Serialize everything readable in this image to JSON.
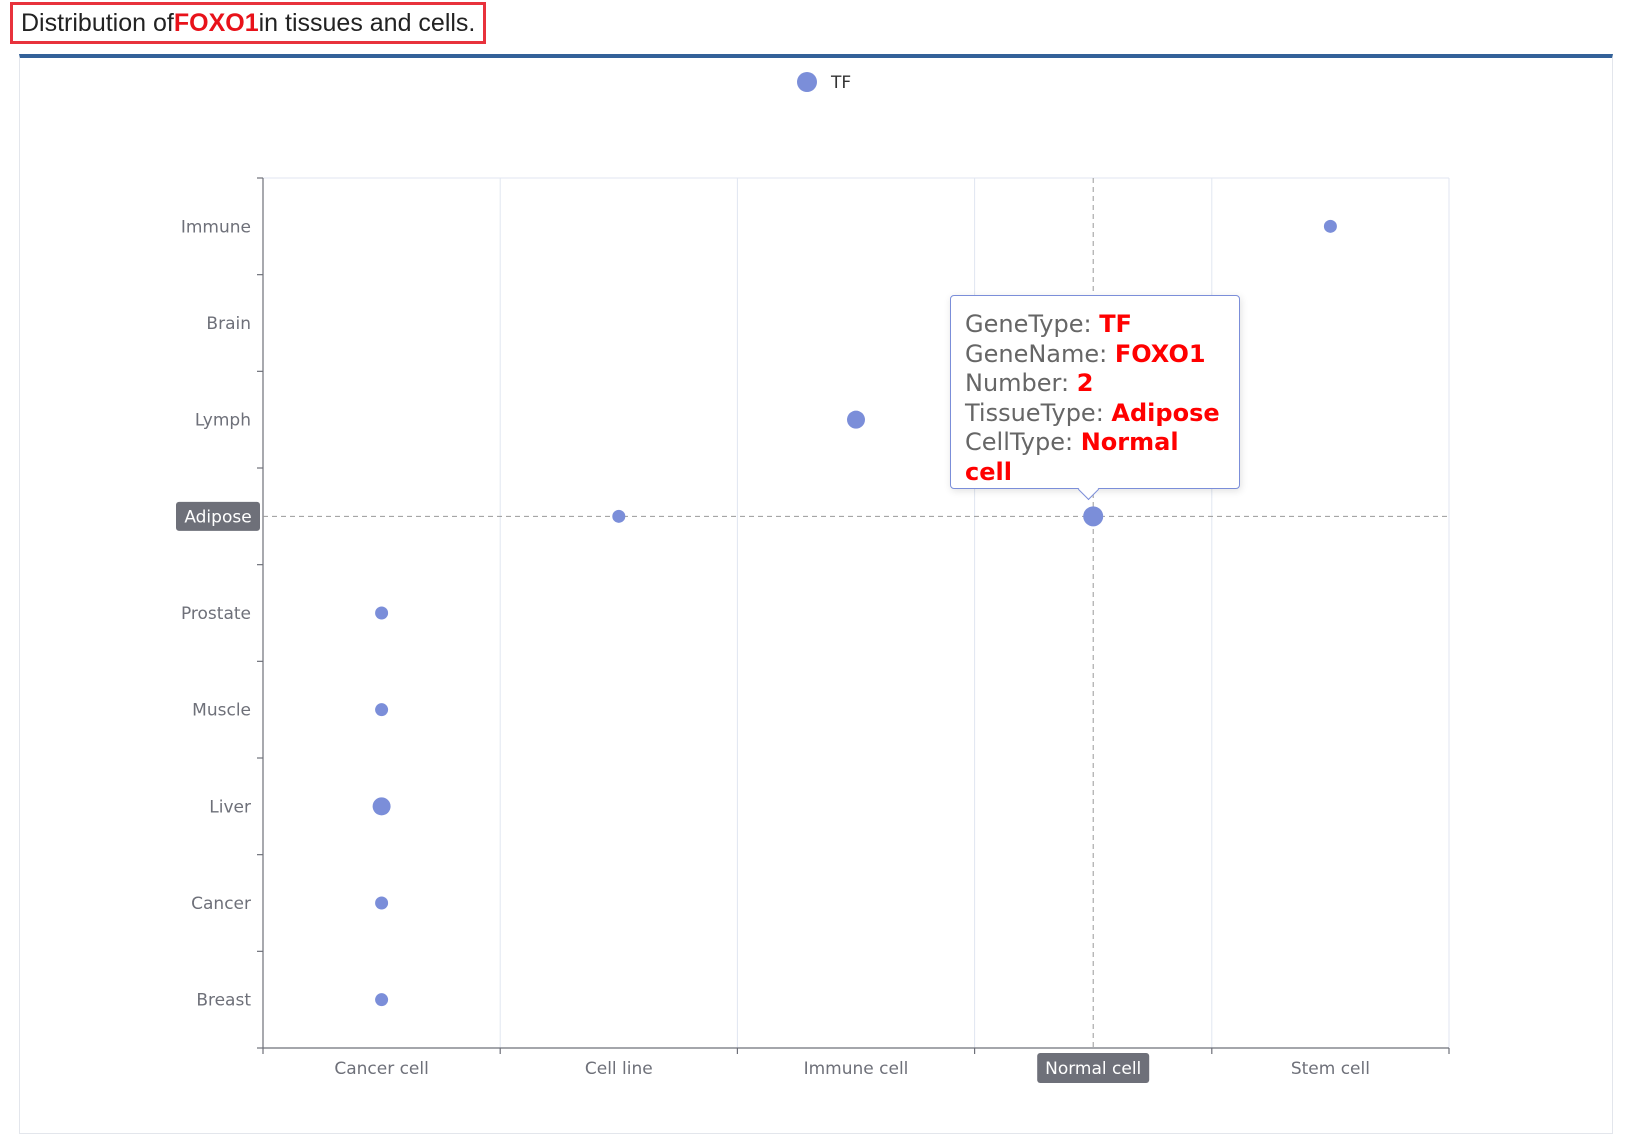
{
  "heading": {
    "prefix": "Distribution of ",
    "gene": "FOXO1",
    "suffix": " in tissues and cells."
  },
  "legend": {
    "label": "TF",
    "color": "#7b8ed9"
  },
  "tooltip": {
    "gene_type_label": "GeneType: ",
    "gene_type_value": "TF",
    "gene_name_label": "GeneName: ",
    "gene_name_value": "FOXO1",
    "number_label": "Number: ",
    "number_value": "2",
    "tissue_type_label": "TissueType: ",
    "tissue_type_value": "Adipose",
    "cell_type_label": "CellType: ",
    "cell_type_value": "Normal cell"
  },
  "chart_data": {
    "type": "scatter",
    "x_categories": [
      "Cancer cell",
      "Cell line",
      "Immune cell",
      "Normal cell",
      "Stem cell"
    ],
    "y_categories": [
      "Breast",
      "Cancer",
      "Liver",
      "Muscle",
      "Prostate",
      "Adipose",
      "Lymph",
      "Brain",
      "Immune"
    ],
    "series": [
      {
        "name": "TF",
        "color": "#7b8ed9",
        "points": [
          {
            "x": "Cancer cell",
            "y": "Breast",
            "value": 1
          },
          {
            "x": "Cancer cell",
            "y": "Cancer",
            "value": 1
          },
          {
            "x": "Cancer cell",
            "y": "Liver",
            "value": 2
          },
          {
            "x": "Cancer cell",
            "y": "Muscle",
            "value": 1
          },
          {
            "x": "Cancer cell",
            "y": "Prostate",
            "value": 1
          },
          {
            "x": "Cell line",
            "y": "Adipose",
            "value": 1
          },
          {
            "x": "Immune cell",
            "y": "Lymph",
            "value": 2
          },
          {
            "x": "Normal cell",
            "y": "Adipose",
            "value": 2
          },
          {
            "x": "Stem cell",
            "y": "Immune",
            "value": 1
          }
        ]
      }
    ],
    "highlight": {
      "x": "Normal cell",
      "y": "Adipose"
    }
  }
}
